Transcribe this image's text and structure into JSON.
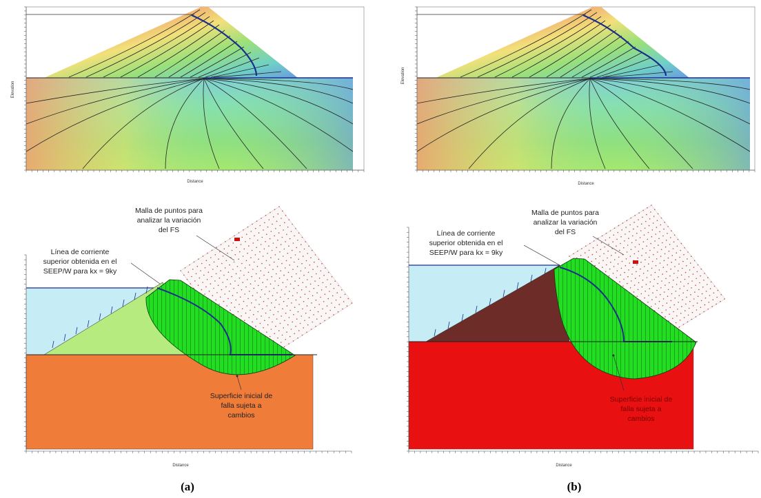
{
  "top_left": {
    "x_axis_label": "Distance",
    "y_axis_label": "Elevation"
  },
  "top_right": {
    "x_axis_label": "Distance",
    "y_axis_label": "Elevation"
  },
  "bottom_left": {
    "x_axis_label": "Distance",
    "grid_label": "Malla de puntos para analizar la variación del FS",
    "grid_label_lines": [
      "Malla de puntos para",
      "analizar la variación",
      "del FS"
    ],
    "flowline_label_lines": [
      "Línea de corriente",
      "superior obtenida en el",
      "SEEP/W para kx = 9ky"
    ],
    "failure_label_lines": [
      "Superficie inicial de",
      "falla sujeta a",
      "cambios"
    ],
    "panel_label": "(a)"
  },
  "bottom_right": {
    "x_axis_label": "Distance",
    "grid_label_lines": [
      "Malla de puntos para",
      "analizar la variación",
      "del FS"
    ],
    "flowline_label_lines": [
      "Línea de corriente",
      "superior obtenida en el",
      "SEEP/W para kx = 9ky"
    ],
    "failure_label_lines": [
      "Superficie inicial de",
      "falla sujeta a",
      "cambios"
    ],
    "panel_label": "(b)"
  },
  "colors": {
    "foundation_a": "#f07c3a",
    "foundation_b": "#e81010",
    "core_a": "#b6ec7f",
    "core_b": "#6e2c28",
    "failure_zone": "#22dd22",
    "water": "#c6ecf6",
    "phreatic": "#1a2f8a"
  }
}
